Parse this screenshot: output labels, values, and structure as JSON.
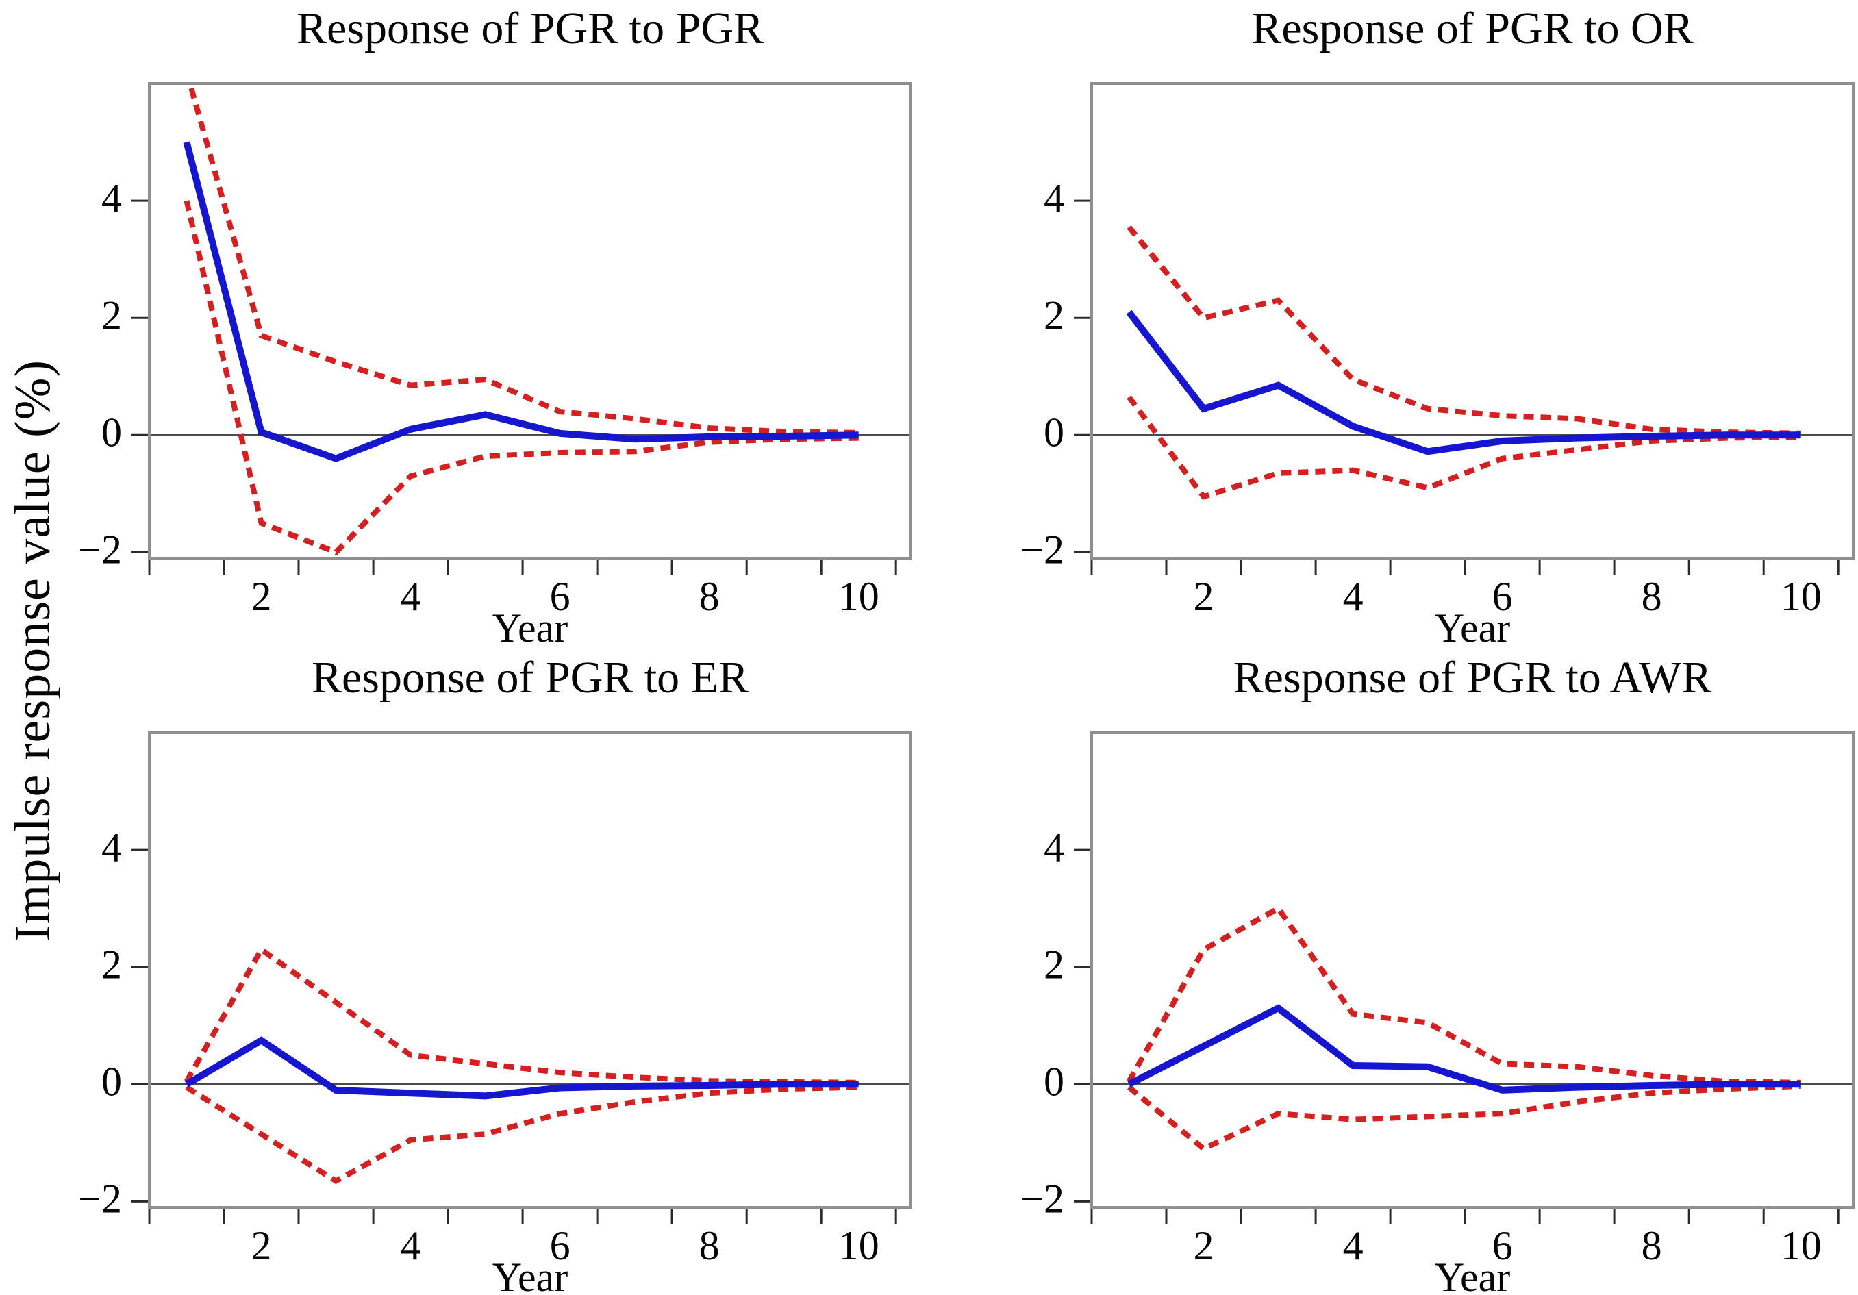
{
  "figure": {
    "y_axis_label": "Impulse response value (%)",
    "x_axis_label": "Year",
    "colors": {
      "impulse_line": "#1616cf",
      "confidence_band": "#d32121",
      "panel_border": "#8f8f8f",
      "zero_line": "#4a4a4a",
      "text": "#050505"
    },
    "y_ticks": [
      4,
      2,
      0,
      -2
    ],
    "y_tick_labels": [
      "4",
      "2",
      "0",
      "−2"
    ],
    "x_label_years": [
      2,
      4,
      6,
      8,
      10
    ],
    "x_tick_labels": [
      "2",
      "4",
      "6",
      "8",
      "10"
    ],
    "x_minor_ticks": [
      0.5,
      1.5,
      2.5,
      3.5,
      4.5,
      5.5,
      6.5,
      7.5,
      8.5,
      9.5,
      10.5
    ],
    "legend": "none",
    "grid": "off"
  },
  "chart_data": [
    {
      "type": "line",
      "title": "Response of PGR to PGR",
      "xlabel": "Year",
      "x": [
        1,
        2,
        3,
        4,
        5,
        6,
        7,
        8,
        9,
        10
      ],
      "xlim": [
        0.5,
        10.7
      ],
      "ylim": [
        -2.1,
        6.0
      ],
      "series": [
        {
          "name": "impulse response",
          "style": "solid-blue",
          "values": [
            5.0,
            0.05,
            -0.4,
            0.1,
            0.35,
            0.03,
            -0.07,
            -0.03,
            -0.02,
            0.0
          ]
        },
        {
          "name": "upper confidence band",
          "style": "dashed-red",
          "values": [
            6.2,
            1.7,
            1.25,
            0.85,
            0.95,
            0.4,
            0.28,
            0.12,
            0.06,
            0.04
          ]
        },
        {
          "name": "lower confidence band",
          "style": "dashed-red",
          "values": [
            4.0,
            -1.5,
            -2.0,
            -0.7,
            -0.36,
            -0.3,
            -0.28,
            -0.12,
            -0.07,
            -0.05
          ]
        }
      ]
    },
    {
      "type": "line",
      "title": "Response of PGR to OR",
      "xlabel": "Year",
      "x": [
        1,
        2,
        3,
        4,
        5,
        6,
        7,
        8,
        9,
        10
      ],
      "xlim": [
        0.5,
        10.7
      ],
      "ylim": [
        -2.1,
        6.0
      ],
      "series": [
        {
          "name": "impulse response",
          "style": "solid-blue",
          "values": [
            2.1,
            0.45,
            0.85,
            0.15,
            -0.28,
            -0.1,
            -0.05,
            -0.02,
            0.0,
            0.0
          ]
        },
        {
          "name": "upper confidence band",
          "style": "dashed-red",
          "values": [
            3.55,
            2.0,
            2.3,
            0.95,
            0.45,
            0.33,
            0.28,
            0.1,
            0.05,
            0.03
          ]
        },
        {
          "name": "lower confidence band",
          "style": "dashed-red",
          "values": [
            0.65,
            -1.05,
            -0.65,
            -0.6,
            -0.9,
            -0.4,
            -0.25,
            -0.1,
            -0.05,
            -0.03
          ]
        }
      ]
    },
    {
      "type": "line",
      "title": "Response of PGR to ER",
      "xlabel": "Year",
      "x": [
        1,
        2,
        3,
        4,
        5,
        6,
        7,
        8,
        9,
        10
      ],
      "xlim": [
        0.5,
        10.7
      ],
      "ylim": [
        -2.1,
        6.0
      ],
      "series": [
        {
          "name": "impulse response",
          "style": "solid-blue",
          "values": [
            0.0,
            0.75,
            -0.1,
            -0.15,
            -0.2,
            -0.06,
            -0.03,
            -0.02,
            0.0,
            0.0
          ]
        },
        {
          "name": "upper confidence band",
          "style": "dashed-red",
          "values": [
            0.05,
            2.3,
            1.4,
            0.5,
            0.35,
            0.2,
            0.12,
            0.06,
            0.04,
            0.03
          ]
        },
        {
          "name": "lower confidence band",
          "style": "dashed-red",
          "values": [
            -0.05,
            -0.85,
            -1.65,
            -0.95,
            -0.85,
            -0.5,
            -0.3,
            -0.15,
            -0.08,
            -0.05
          ]
        }
      ]
    },
    {
      "type": "line",
      "title": "Response of PGR to AWR",
      "xlabel": "Year",
      "x": [
        1,
        2,
        3,
        4,
        5,
        6,
        7,
        8,
        9,
        10
      ],
      "xlim": [
        0.5,
        10.7
      ],
      "ylim": [
        -2.1,
        6.0
      ],
      "series": [
        {
          "name": "impulse response",
          "style": "solid-blue",
          "values": [
            0.0,
            0.65,
            1.3,
            0.32,
            0.3,
            -0.1,
            -0.05,
            -0.02,
            0.0,
            0.0
          ]
        },
        {
          "name": "upper confidence band",
          "style": "dashed-red",
          "values": [
            0.05,
            2.3,
            3.0,
            1.2,
            1.05,
            0.35,
            0.3,
            0.15,
            0.05,
            0.03
          ]
        },
        {
          "name": "lower confidence band",
          "style": "dashed-red",
          "values": [
            -0.05,
            -1.1,
            -0.5,
            -0.6,
            -0.55,
            -0.5,
            -0.3,
            -0.15,
            -0.08,
            -0.03
          ]
        }
      ]
    }
  ]
}
